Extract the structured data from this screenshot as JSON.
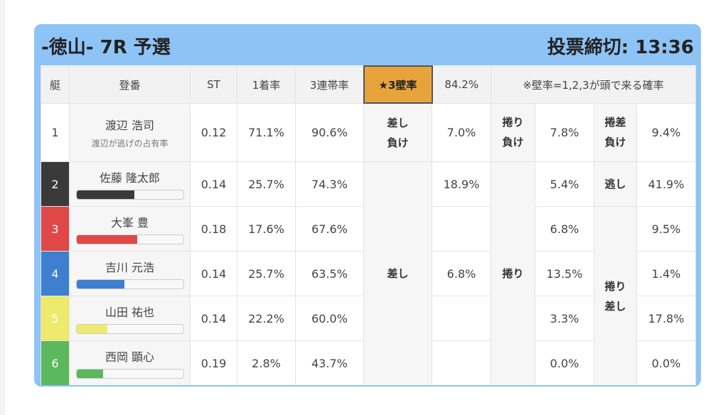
{
  "header": {
    "title": "-徳山- 7R 予選",
    "deadline": "投票締切: 13:36"
  },
  "table": {
    "columns": [
      "艇",
      "登番",
      "ST",
      "1着率",
      "3連帯率",
      "★3壁率",
      "84.2%",
      "※壁率=1,2,3が頭で来る確率"
    ],
    "kinds": {
      "sashi": [
        "差し\n負け",
        "差し"
      ],
      "makuri": [
        "捲り\n負け",
        "捲り"
      ],
      "makurisashi": [
        "捲差\n負け",
        "逃し",
        "捲り\n差し"
      ]
    },
    "rows": [
      {
        "boat": "1",
        "name": "渡辺 浩司",
        "note": "渡辺が逃げの占有率",
        "st": "0.12",
        "win": "71.1%",
        "top3": "90.6%",
        "sashi": "7.0%",
        "makuri": "7.8%",
        "makurisashi": "9.4%"
      },
      {
        "boat": "2",
        "name": "佐藤 隆太郎",
        "bar": 54,
        "st": "0.14",
        "win": "25.7%",
        "top3": "74.3%",
        "sashi": "18.9%",
        "makuri": "5.4%",
        "makurisashi": "41.9%"
      },
      {
        "boat": "3",
        "name": "大峯 豊",
        "bar": 57,
        "st": "0.18",
        "win": "17.6%",
        "top3": "67.6%",
        "makuri": "6.8%",
        "makurisashi": "9.5%"
      },
      {
        "boat": "4",
        "name": "吉川 元浩",
        "bar": 45,
        "st": "0.14",
        "win": "25.7%",
        "top3": "63.5%",
        "sashi": "6.8%",
        "makuri": "13.5%",
        "makurisashi": "1.4%"
      },
      {
        "boat": "5",
        "name": "山田 祐也",
        "bar": 29,
        "st": "0.14",
        "win": "22.2%",
        "top3": "60.0%",
        "makuri": "3.3%",
        "makurisashi": "17.8%"
      },
      {
        "boat": "6",
        "name": "西岡 顕心",
        "bar": 25,
        "st": "0.19",
        "win": "2.8%",
        "top3": "43.7%",
        "makuri": "0.0%",
        "makurisashi": "0.0%"
      }
    ]
  }
}
